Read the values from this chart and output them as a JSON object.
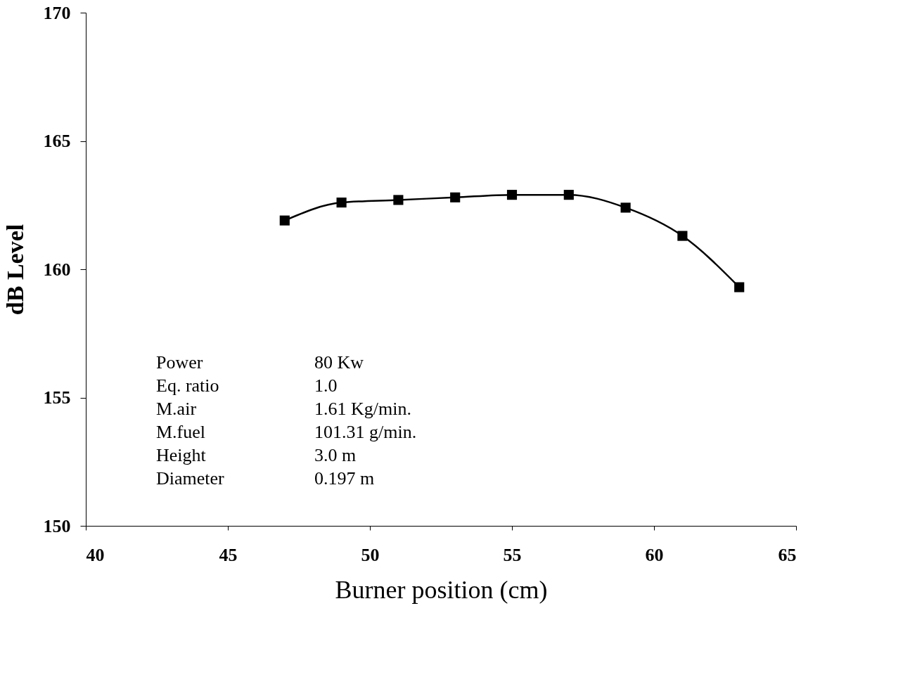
{
  "chart_data": {
    "type": "line",
    "xlabel": "Burner position (cm)",
    "ylabel": "dB Level",
    "x": [
      47,
      49,
      51,
      53,
      55,
      57,
      59,
      61,
      63
    ],
    "series": [
      {
        "color": "#000000",
        "values": [
          161.9,
          162.6,
          162.7,
          162.8,
          162.9,
          162.9,
          162.4,
          161.3,
          159.3
        ]
      }
    ],
    "xlim": [
      40,
      65
    ],
    "xticks": [
      40,
      45,
      50,
      55,
      60,
      65
    ],
    "ylim": [
      150,
      170
    ],
    "yticks": [
      150,
      155,
      160,
      165,
      170
    ],
    "marker": "square",
    "line_style": "solid",
    "grid": false,
    "legend": false,
    "annotations": [
      "Power",
      "Eq. ratio",
      "M.air",
      "M.fuel",
      "Height",
      "Diameter",
      "80  Kw",
      "1.0",
      "1.61  Kg/min.",
      "101.31  g/min.",
      "3.0  m",
      "0.197  m"
    ]
  }
}
